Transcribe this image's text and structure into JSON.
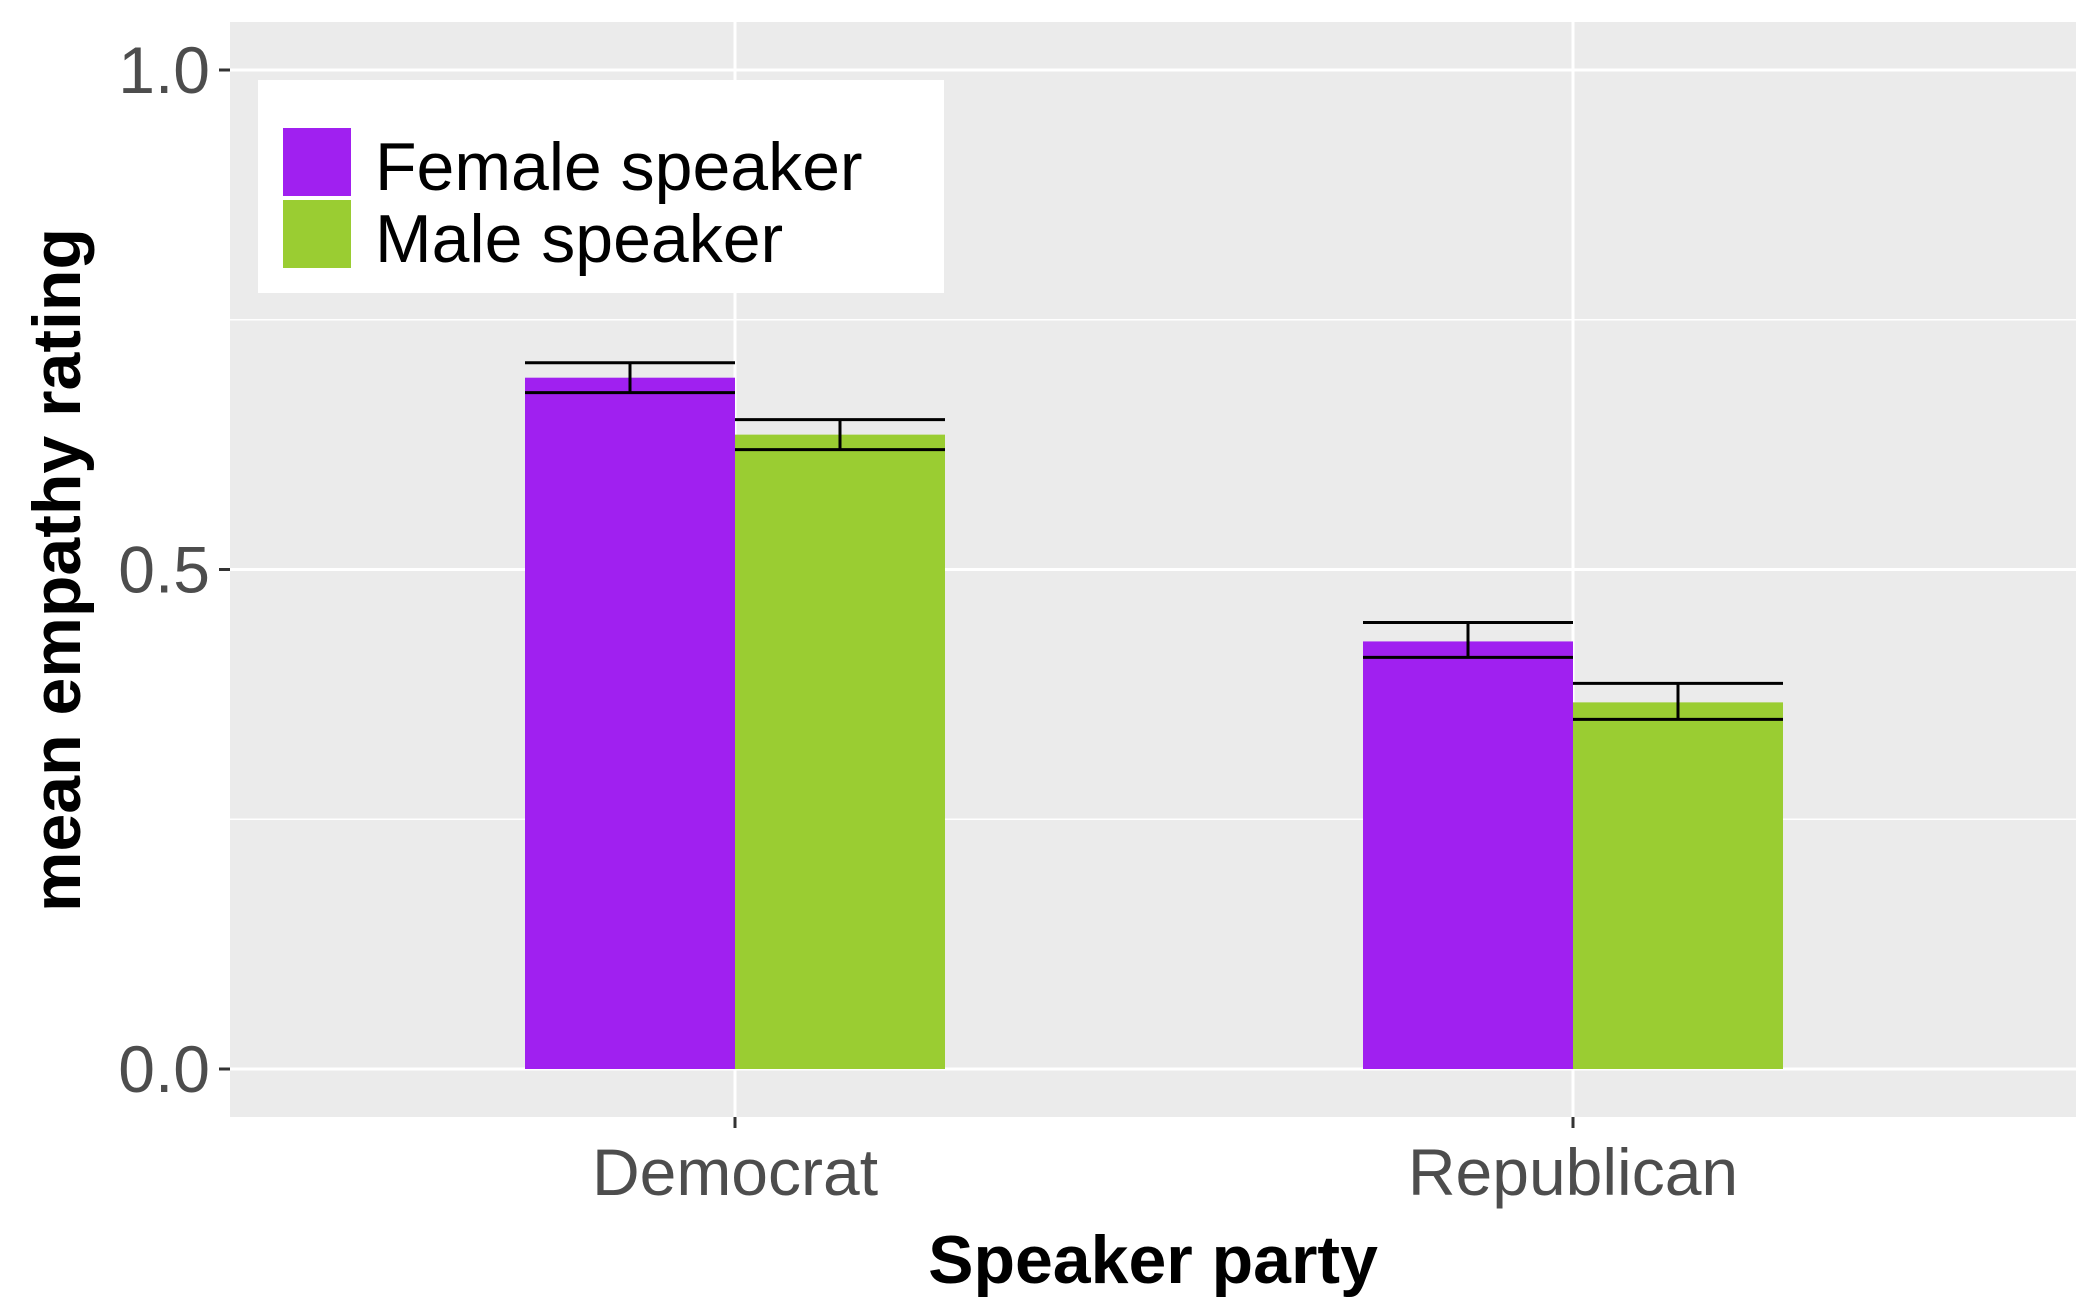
{
  "chart_data": {
    "type": "bar",
    "title": "",
    "xlabel": "Speaker party",
    "ylabel": "mean empathy rating",
    "categories": [
      "Democrat",
      "Republican"
    ],
    "series": [
      {
        "name": "Female speaker",
        "color": "#a020f0",
        "values": [
          0.692,
          0.428
        ],
        "error_low": [
          0.677,
          0.412
        ],
        "error_high": [
          0.707,
          0.447
        ]
      },
      {
        "name": "Male speaker",
        "color": "#9acd32",
        "values": [
          0.635,
          0.367
        ],
        "error_low": [
          0.62,
          0.35
        ],
        "error_high": [
          0.65,
          0.386
        ]
      }
    ],
    "ylim": [
      -0.05,
      1.05
    ],
    "yticks": [
      0.0,
      0.5,
      1.0
    ],
    "ytick_labels": [
      "0.0",
      "0.5",
      "1.0"
    ],
    "grid": true,
    "legend_position": "top-left inside",
    "panel_background": "#ebebeb"
  }
}
